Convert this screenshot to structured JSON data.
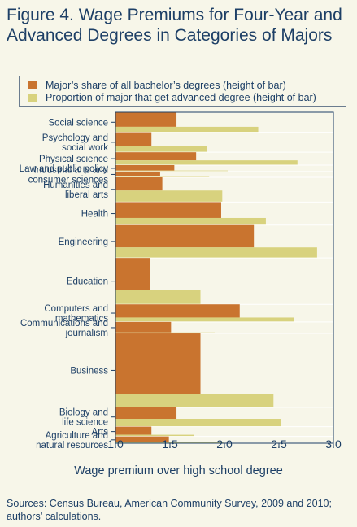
{
  "title": "Figure 4. Wage Premiums for Four-Year and Advanced Degrees in Categories of Majors",
  "legend": {
    "share_label": "Major’s share of all bachelor’s degrees (height of bar)",
    "advanced_label": "Proportion of major that get advanced degree (height of bar)"
  },
  "source": "Sources: Census Bureau, American Community Survey, 2009 and 2010; authors’ calculations.",
  "colors": {
    "share": "#c9742f",
    "advanced": "#d8d27e",
    "frame": "#1d3f66",
    "divider": "#ffffff"
  },
  "chart_data": {
    "type": "bar",
    "orientation": "horizontal",
    "xlabel": "Wage premium over high school degree",
    "xlim": [
      1.0,
      3.0
    ],
    "xticks": [
      "1.0",
      "1.5",
      "2.0",
      "2.5",
      "3.0"
    ],
    "categories": [
      {
        "label": "Social science",
        "share_premium": 1.56,
        "advanced_premium": 2.31,
        "share_height": 4.3,
        "advanced_height": 1.6
      },
      {
        "label": "Psychology and social work",
        "share_premium": 1.33,
        "advanced_premium": 1.84,
        "share_height": 4.0,
        "advanced_height": 1.9
      },
      {
        "label": "Physical science",
        "share_premium": 1.74,
        "advanced_premium": 2.67,
        "share_height": 2.4,
        "advanced_height": 1.4
      },
      {
        "label": "Law and public policy",
        "share_premium": 1.54,
        "advanced_premium": 2.03,
        "share_height": 1.6,
        "advanced_height": 0.3
      },
      {
        "label": "Industrial arts and consumer sciences",
        "share_premium": 1.41,
        "advanced_premium": 1.86,
        "share_height": 1.4,
        "advanced_height": 0.3
      },
      {
        "label": "Humanities and liberal arts",
        "share_premium": 1.43,
        "advanced_premium": 1.98,
        "share_height": 3.9,
        "advanced_height": 3.4
      },
      {
        "label": "Health",
        "share_premium": 1.97,
        "advanced_premium": 2.38,
        "share_height": 4.7,
        "advanced_height": 2.1
      },
      {
        "label": "Engineering",
        "share_premium": 2.27,
        "advanced_premium": 2.85,
        "share_height": 6.6,
        "advanced_height": 3.1
      },
      {
        "label": "Education",
        "share_premium": 1.32,
        "advanced_premium": 1.78,
        "share_height": 9.4,
        "advanced_height": 4.3
      },
      {
        "label": "Computers and mathematics",
        "share_premium": 2.14,
        "advanced_premium": 2.64,
        "share_height": 3.9,
        "advanced_height": 1.3
      },
      {
        "label": "Communications and journalism",
        "share_premium": 1.51,
        "advanced_premium": 1.91,
        "share_height": 3.1,
        "advanced_height": 0.3
      },
      {
        "label": "Business",
        "share_premium": 1.78,
        "advanced_premium": 2.45,
        "share_height": 17.8,
        "advanced_height": 4.0
      },
      {
        "label": "Biology and life science",
        "share_premium": 1.56,
        "advanced_premium": 2.52,
        "share_height": 3.4,
        "advanced_height": 2.3
      },
      {
        "label": "Arts",
        "share_premium": 1.33,
        "advanced_premium": 1.72,
        "share_height": 2.4,
        "advanced_height": 0.5
      },
      {
        "label": "Agriculture and natural resources",
        "share_premium": 1.49,
        "advanced_premium": 1.99,
        "share_height": 1.7,
        "advanced_height": 0.3
      }
    ]
  }
}
